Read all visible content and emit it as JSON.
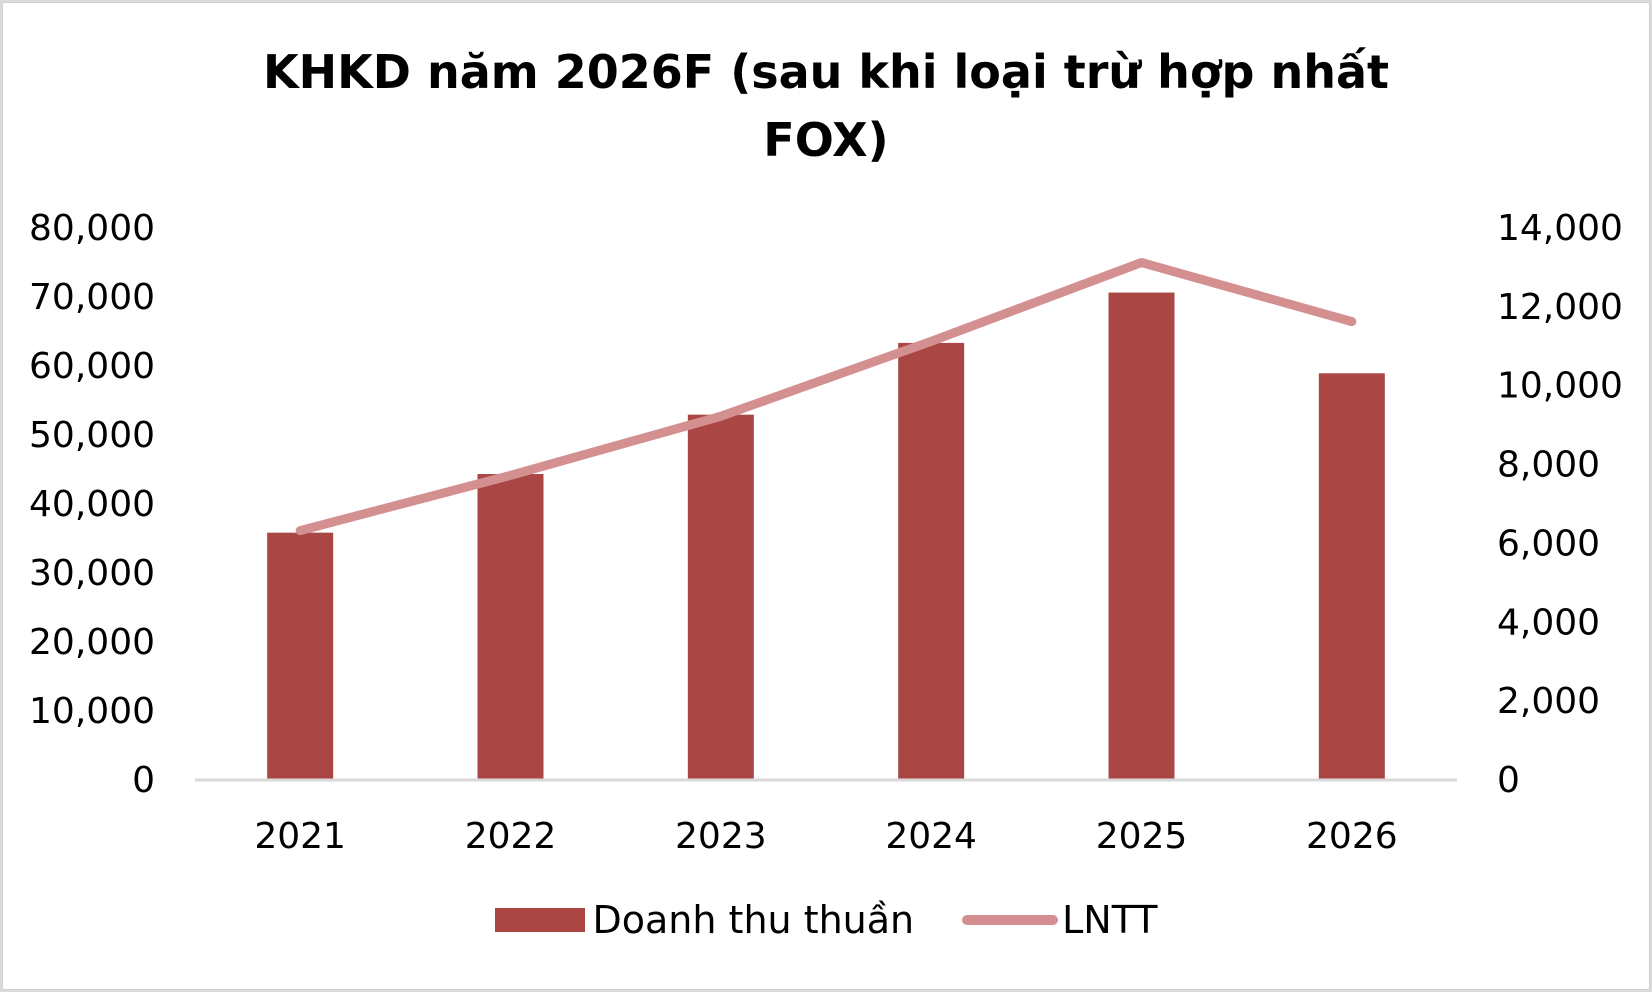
{
  "title": {
    "line1": "KHKD năm 2026F (sau khi loại trừ hợp nhất",
    "line2": "FOX)"
  },
  "colors": {
    "bar": "#AA4745",
    "line": "#D49090",
    "axis": "#D9D9D9"
  },
  "legend": {
    "bar_label": "Doanh thu thuần",
    "line_label": "LNTT"
  },
  "chart_data": {
    "type": "bar",
    "title": "KHKD năm 2026F (sau khi loại trừ hợp nhất FOX)",
    "categories": [
      "2021",
      "2022",
      "2023",
      "2024",
      "2025",
      "2026"
    ],
    "series": [
      {
        "name": "Doanh thu thuần",
        "type": "bar",
        "axis": "left",
        "values": [
          35700,
          44200,
          52800,
          63200,
          70500,
          58800
        ]
      },
      {
        "name": "LNTT",
        "type": "line",
        "axis": "right",
        "values": [
          6300,
          7700,
          9200,
          11100,
          13100,
          11600
        ]
      }
    ],
    "left_axis": {
      "ylim": [
        0,
        80000
      ],
      "ticks": [
        "0",
        "10,000",
        "20,000",
        "30,000",
        "40,000",
        "50,000",
        "60,000",
        "70,000",
        "80,000"
      ]
    },
    "right_axis": {
      "ylim": [
        0,
        14000
      ],
      "ticks": [
        "0",
        "2,000",
        "4,000",
        "6,000",
        "8,000",
        "10,000",
        "12,000",
        "14,000"
      ]
    },
    "xlabel": "",
    "ylabel": "",
    "grid": false,
    "legend_position": "bottom"
  }
}
